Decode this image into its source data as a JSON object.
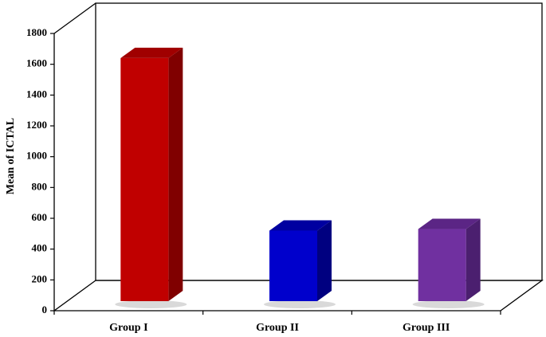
{
  "chart_data": {
    "type": "bar",
    "categories": [
      "Group I",
      "Group II",
      "Group III"
    ],
    "values": [
      1640,
      520,
      530
    ],
    "title": "",
    "xlabel": "",
    "ylabel": "Mean of ICTAL",
    "ylim": [
      0,
      1800
    ],
    "yticks": [
      "0",
      "200",
      "400",
      "600",
      "800",
      "1000",
      "1200",
      "1400",
      "1600",
      "1800"
    ],
    "grid": false,
    "legend": "none",
    "style": "3d-column",
    "colors": [
      "#c00000",
      "#0000cc",
      "#7030a0"
    ],
    "side_colors": [
      "#800000",
      "#000080",
      "#4b1f6f"
    ],
    "top_colors": [
      "#a00000",
      "#0000a0",
      "#5b2585"
    ]
  }
}
